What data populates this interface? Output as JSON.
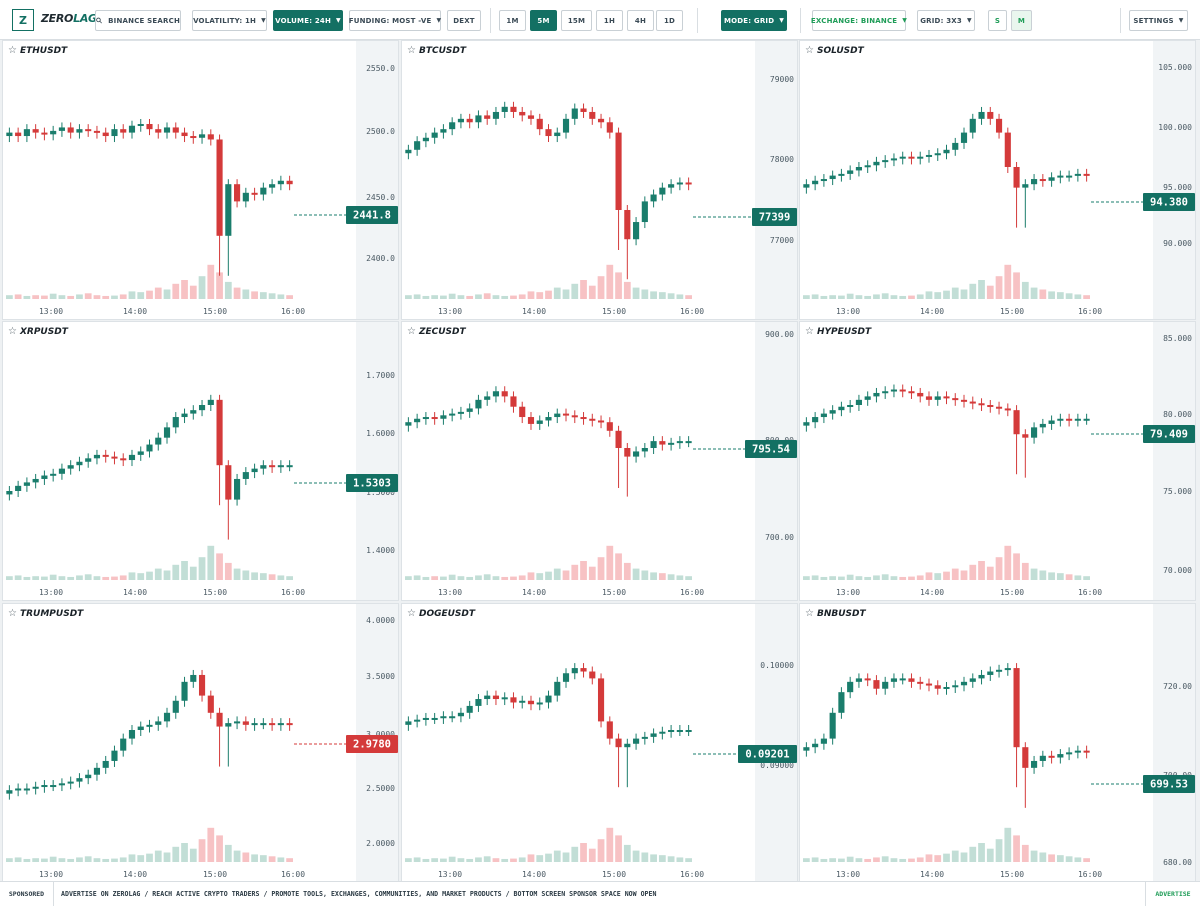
{
  "app": {
    "logo_letter": "Z",
    "logo_zero": "ZERO",
    "logo_lag": "LAG"
  },
  "toolbar": {
    "search_label": "BINANCE SEARCH",
    "volatility": "VOLATILITY: 1H",
    "volume": "VOLUME: 24H",
    "funding": "FUNDING: MOST -VE",
    "dext": "DEXT",
    "timeframes": [
      "1M",
      "5M",
      "15M",
      "1H",
      "4H",
      "1D"
    ],
    "active_timeframe": "5M",
    "mode": "MODE: GRID",
    "exchange": "EXCHANGE: BINANCE",
    "grid": "GRID: 3X3",
    "size_s": "S",
    "size_m": "M",
    "settings": "SETTINGS"
  },
  "colors": {
    "accent": "#137063",
    "up": "#1a7d6c",
    "down": "#d43a3a",
    "up_vol": "#c2ded6",
    "down_vol": "#f7c2c4",
    "positive": "#1e9c57"
  },
  "time_labels": [
    "13:00",
    "14:00",
    "15:00",
    "16:00"
  ],
  "panels": [
    {
      "symbol": "ETHUSDT",
      "ticks": [
        "2550.0",
        "2500.0",
        "2450.0",
        "2400.0"
      ],
      "last_price": "2441.8",
      "last_dir": "up"
    },
    {
      "symbol": "BTCUSDT",
      "ticks": [
        "79000",
        "78000",
        "77000"
      ],
      "last_price": "77399",
      "last_dir": "up"
    },
    {
      "symbol": "SOLUSDT",
      "ticks": [
        "105.000",
        "100.000",
        "95.000",
        "90.000"
      ],
      "last_price": "94.380",
      "last_dir": "up"
    },
    {
      "symbol": "XRPUSDT",
      "ticks": [
        "1.7000",
        "1.6000",
        "1.5000",
        "1.4000"
      ],
      "last_price": "1.5303",
      "last_dir": "up"
    },
    {
      "symbol": "ZECUSDT",
      "ticks": [
        "900.00",
        "800.00",
        "700.00"
      ],
      "last_price": "795.54",
      "last_dir": "up"
    },
    {
      "symbol": "HYPEUSDT",
      "ticks": [
        "85.000",
        "80.000",
        "75.000",
        "70.000"
      ],
      "last_price": "79.409",
      "last_dir": "up"
    },
    {
      "symbol": "TRUMPUSDT",
      "ticks": [
        "4.0000",
        "3.5000",
        "3.0000",
        "2.5000",
        "2.0000"
      ],
      "last_price": "2.9780",
      "last_dir": "down"
    },
    {
      "symbol": "DOGEUSDT",
      "ticks": [
        "0.10000",
        "0.09000"
      ],
      "last_price": "0.09201",
      "last_dir": "up"
    },
    {
      "symbol": "BNBUSDT",
      "ticks": [
        "720.00",
        "700.00",
        "680.00"
      ],
      "last_price": "699.53",
      "last_dir": "up"
    }
  ],
  "footer": {
    "sponsored": "SPONSORED",
    "ad_text": "ADVERTISE ON ZEROLAG / REACH ACTIVE CRYPTO TRADERS / PROMOTE TOOLS, EXCHANGES, COMMUNITIES, AND MARKET PRODUCTS / BOTTOM SCREEN SPONSOR SPACE NOW OPEN",
    "advertise": "ADVERTISE"
  }
}
